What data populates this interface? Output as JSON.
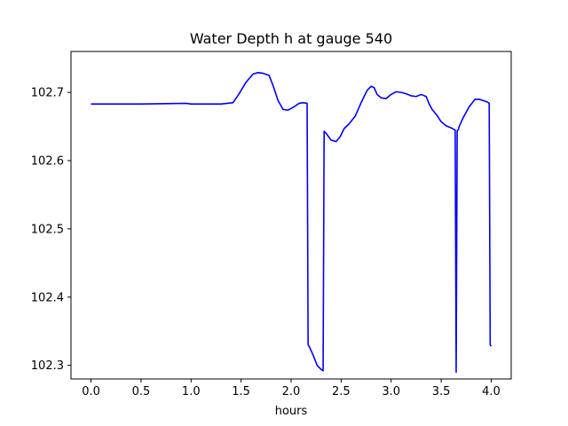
{
  "chart_data": {
    "type": "line",
    "title": "Water Depth h at gauge 540",
    "xlabel": "hours",
    "ylabel": "",
    "xlim": [
      -0.2,
      4.2
    ],
    "ylim": [
      102.28,
      102.76
    ],
    "xticks": [
      0.0,
      0.5,
      1.0,
      1.5,
      2.0,
      2.5,
      3.0,
      3.5,
      4.0
    ],
    "xtick_labels": [
      "0.0",
      "0.5",
      "1.0",
      "1.5",
      "2.0",
      "2.5",
      "3.0",
      "3.5",
      "4.0"
    ],
    "yticks": [
      102.3,
      102.4,
      102.5,
      102.6,
      102.7
    ],
    "ytick_labels": [
      "102.3",
      "102.4",
      "102.5",
      "102.6",
      "102.7"
    ],
    "grid": false,
    "series": [
      {
        "color": "#0000ff",
        "x": [
          0.0,
          0.5,
          0.95,
          1.0,
          1.3,
          1.42,
          1.48,
          1.55,
          1.62,
          1.67,
          1.72,
          1.78,
          1.82,
          1.87,
          1.92,
          1.97,
          2.03,
          2.08,
          2.12,
          2.16,
          2.17,
          2.18,
          2.22,
          2.26,
          2.3,
          2.32,
          2.33,
          2.35,
          2.4,
          2.45,
          2.49,
          2.53,
          2.58,
          2.64,
          2.7,
          2.76,
          2.8,
          2.83,
          2.86,
          2.9,
          2.95,
          3.0,
          3.05,
          3.1,
          3.15,
          3.2,
          3.25,
          3.3,
          3.35,
          3.38,
          3.41,
          3.45,
          3.5,
          3.55,
          3.6,
          3.64,
          3.65,
          3.66,
          3.67,
          3.68,
          3.72,
          3.78,
          3.84,
          3.88,
          3.92,
          3.96,
          3.98,
          3.99,
          4.0
        ],
        "y": [
          102.683,
          102.683,
          102.684,
          102.683,
          102.683,
          102.685,
          102.698,
          102.715,
          102.727,
          102.729,
          102.728,
          102.725,
          102.71,
          102.688,
          102.675,
          102.674,
          102.679,
          102.684,
          102.685,
          102.684,
          102.33,
          102.328,
          102.315,
          102.3,
          102.294,
          102.292,
          102.643,
          102.64,
          102.63,
          102.628,
          102.635,
          102.647,
          102.654,
          102.665,
          102.685,
          102.703,
          102.709,
          102.707,
          102.697,
          102.692,
          102.691,
          102.697,
          102.701,
          102.7,
          102.698,
          102.695,
          102.694,
          102.697,
          102.694,
          102.683,
          102.675,
          102.668,
          102.657,
          102.651,
          102.648,
          102.645,
          102.29,
          102.644,
          102.645,
          102.65,
          102.663,
          102.679,
          102.69,
          102.69,
          102.688,
          102.686,
          102.684,
          102.33,
          102.328
        ]
      }
    ]
  }
}
